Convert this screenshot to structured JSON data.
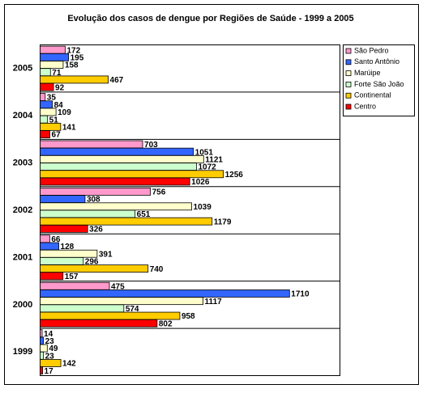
{
  "chart_data": {
    "type": "bar",
    "orientation": "horizontal",
    "title": "Evolução dos casos de dengue por Regiões de Saúde - 1999 a 2005",
    "categories": [
      "2005",
      "2004",
      "2003",
      "2002",
      "2001",
      "2000",
      "1999"
    ],
    "xlim": [
      0,
      2000
    ],
    "series": [
      {
        "name": "São Pedro",
        "color": "#ff99cc",
        "values": [
          172,
          35,
          703,
          756,
          66,
          475,
          14
        ]
      },
      {
        "name": "Santo Antônio",
        "color": "#3366ff",
        "values": [
          195,
          84,
          1051,
          308,
          128,
          1710,
          23
        ]
      },
      {
        "name": "Marúipe",
        "color": "#ffffcc",
        "values": [
          158,
          109,
          1121,
          1039,
          391,
          1117,
          49
        ]
      },
      {
        "name": "Forte São João",
        "color": "#ccffcc",
        "values": [
          71,
          51,
          1072,
          651,
          296,
          574,
          23
        ]
      },
      {
        "name": "Continental",
        "color": "#ffcc00",
        "values": [
          467,
          141,
          1256,
          1179,
          740,
          958,
          142
        ]
      },
      {
        "name": "Centro",
        "color": "#ff0000",
        "values": [
          92,
          67,
          1026,
          326,
          157,
          802,
          17
        ]
      }
    ],
    "legend": "right"
  }
}
